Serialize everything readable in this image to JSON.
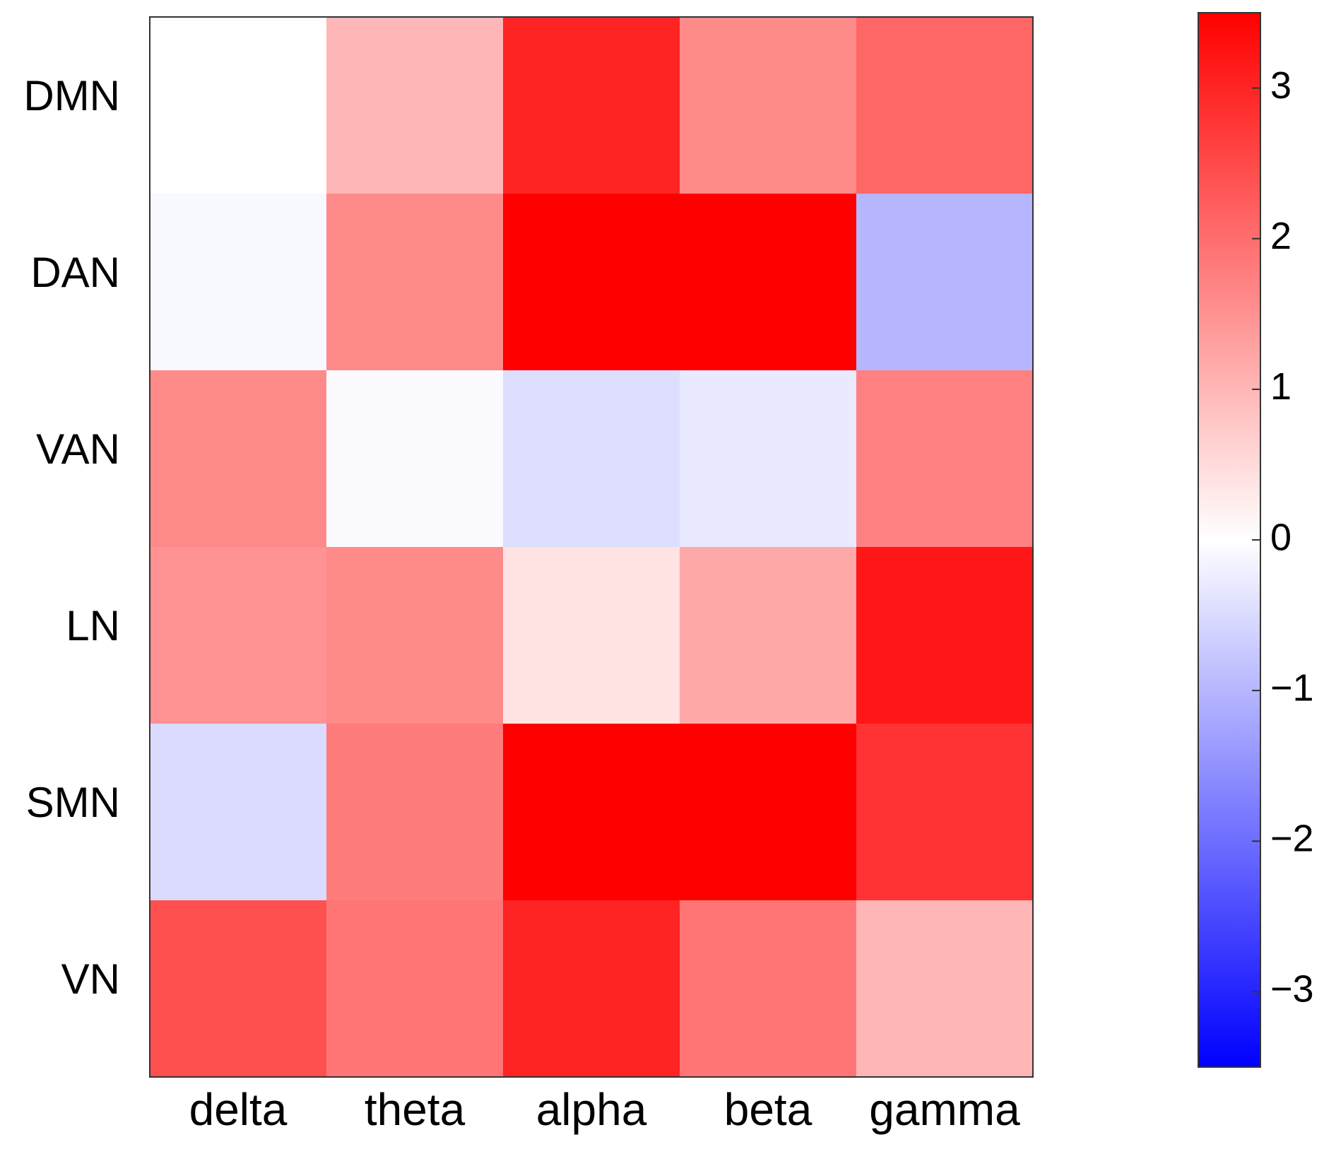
{
  "chart_data": {
    "type": "heatmap",
    "title": "",
    "xlabel": "",
    "ylabel": "",
    "x_categories": [
      "delta",
      "theta",
      "alpha",
      "beta",
      "gamma"
    ],
    "y_categories": [
      "DMN",
      "DAN",
      "VAN",
      "LN",
      "SMN",
      "VN"
    ],
    "values": [
      [
        0.0,
        1.0,
        3.0,
        1.6,
        2.1
      ],
      [
        -0.1,
        1.6,
        3.5,
        3.5,
        -1.0
      ],
      [
        1.6,
        -0.05,
        -0.45,
        -0.3,
        1.75
      ],
      [
        1.5,
        1.6,
        0.4,
        1.2,
        3.2
      ],
      [
        -0.5,
        1.8,
        3.5,
        3.5,
        2.8
      ],
      [
        2.4,
        1.9,
        3.0,
        1.9,
        1.0
      ]
    ],
    "colorbar": {
      "min": -3.5,
      "max": 3.5,
      "ticks": [
        3,
        2,
        1,
        0,
        -1,
        -2,
        -3
      ],
      "tick_labels": [
        "3",
        "2",
        "1",
        "0",
        "−1",
        "−2",
        "−3"
      ],
      "low_color": "#0000ff",
      "mid_color": "#ffffff",
      "high_color": "#ff0000"
    }
  }
}
